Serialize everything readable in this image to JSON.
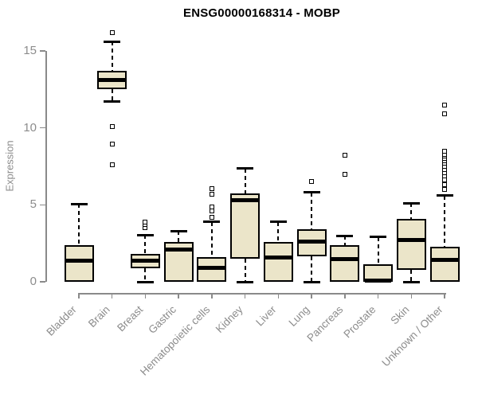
{
  "chart_data": {
    "type": "boxplot",
    "title": "ENSG00000168314 - MOBP",
    "ylabel": "Expression",
    "xlabel": "",
    "yticks": [
      0,
      5,
      10,
      15
    ],
    "ylim": [
      0,
      16.5
    ],
    "grid": false,
    "legend": "none",
    "categories": [
      "Bladder",
      "Brain",
      "Breast",
      "Gastric",
      "Hematopoietic cells",
      "Kidney",
      "Liver",
      "Lung",
      "Pancreas",
      "Prostate",
      "Skin",
      "Unknown / Other"
    ],
    "series": [
      {
        "category": "Bladder",
        "whisker_low": 0,
        "q1": 0,
        "median": 1.35,
        "q3": 2.4,
        "whisker_high": 5.05,
        "outliers": []
      },
      {
        "category": "Brain",
        "whisker_low": 11.7,
        "q1": 12.5,
        "median": 13.1,
        "q3": 13.7,
        "whisker_high": 15.6,
        "outliers": [
          16.2,
          10.1,
          8.95,
          7.6
        ]
      },
      {
        "category": "Breast",
        "whisker_low": 0,
        "q1": 0.9,
        "median": 1.35,
        "q3": 1.8,
        "whisker_high": 3.05,
        "outliers": [
          3.5,
          3.7,
          3.9
        ]
      },
      {
        "category": "Gastric",
        "whisker_low": 0,
        "q1": 0,
        "median": 2.1,
        "q3": 2.6,
        "whisker_high": 3.3,
        "outliers": []
      },
      {
        "category": "Hematopoietic cells",
        "whisker_low": 0,
        "q1": 0,
        "median": 0.9,
        "q3": 1.6,
        "whisker_high": 3.9,
        "outliers": [
          4.2,
          4.6,
          4.85,
          5.7,
          6.05
        ]
      },
      {
        "category": "Kidney",
        "whisker_low": 0,
        "q1": 1.5,
        "median": 5.3,
        "q3": 5.75,
        "whisker_high": 7.35,
        "outliers": []
      },
      {
        "category": "Liver",
        "whisker_low": 0,
        "q1": 0,
        "median": 1.6,
        "q3": 2.6,
        "whisker_high": 3.9,
        "outliers": []
      },
      {
        "category": "Lung",
        "whisker_low": 0,
        "q1": 1.65,
        "median": 2.6,
        "q3": 3.4,
        "whisker_high": 5.8,
        "outliers": [
          6.5
        ]
      },
      {
        "category": "Pancreas",
        "whisker_low": 0,
        "q1": 0,
        "median": 1.5,
        "q3": 2.4,
        "whisker_high": 3.0,
        "outliers": [
          7.0,
          8.2
        ]
      },
      {
        "category": "Prostate",
        "whisker_low": 0,
        "q1": 0,
        "median": 0.1,
        "q3": 1.15,
        "whisker_high": 2.9,
        "outliers": []
      },
      {
        "category": "Skin",
        "whisker_low": 0,
        "q1": 0.8,
        "median": 2.7,
        "q3": 4.1,
        "whisker_high": 5.1,
        "outliers": []
      },
      {
        "category": "Unknown / Other",
        "whisker_low": 0,
        "q1": 0,
        "median": 1.4,
        "q3": 2.3,
        "whisker_high": 5.6,
        "outliers": [
          6.0,
          6.3,
          6.6,
          6.9,
          7.1,
          7.3,
          7.5,
          7.7,
          7.85,
          8.0,
          8.15,
          8.3,
          8.5,
          10.9,
          11.5
        ]
      }
    ],
    "colors": {
      "box_fill": "#EBE5C9",
      "box_border": "#000000",
      "whisker": "#000000",
      "axis": "#8a8a8a",
      "tick_label": "#8c8c8c",
      "title": "#000000",
      "background": "#ffffff"
    }
  }
}
